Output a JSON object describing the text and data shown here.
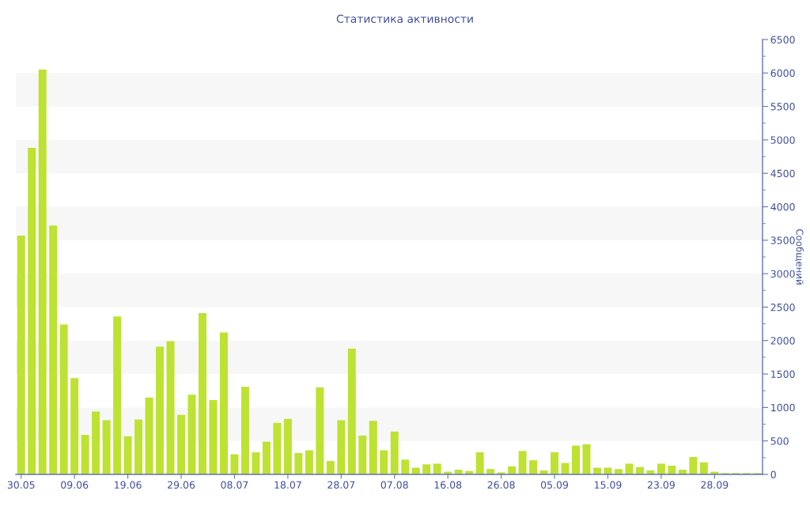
{
  "chart_data": {
    "type": "bar",
    "title": "Статистика активности",
    "ylabel": "Сообщений",
    "categories": [
      "30.05",
      null,
      null,
      null,
      null,
      "09.06",
      null,
      null,
      null,
      null,
      "19.06",
      null,
      null,
      null,
      null,
      "29.06",
      null,
      null,
      null,
      null,
      "08.07",
      null,
      null,
      null,
      null,
      "18.07",
      null,
      null,
      null,
      null,
      "28.07",
      null,
      null,
      null,
      null,
      "07.08",
      null,
      null,
      null,
      null,
      "16.08",
      null,
      null,
      null,
      null,
      "26.08",
      null,
      null,
      null,
      null,
      "05.09",
      null,
      null,
      null,
      null,
      "15.09",
      null,
      null,
      null,
      null,
      "23.09",
      null,
      null,
      null,
      null,
      "28.09",
      null,
      null,
      null,
      null
    ],
    "values": [
      3570,
      4880,
      6050,
      3720,
      2240,
      1440,
      590,
      940,
      810,
      2360,
      570,
      820,
      1150,
      1910,
      1990,
      890,
      1190,
      2410,
      1110,
      2120,
      300,
      1310,
      330,
      490,
      770,
      830,
      320,
      360,
      1300,
      200,
      810,
      1880,
      580,
      800,
      360,
      640,
      220,
      100,
      150,
      160,
      40,
      70,
      50,
      330,
      80,
      30,
      120,
      350,
      210,
      60,
      330,
      170,
      430,
      450,
      100,
      100,
      80,
      160,
      110,
      60,
      160,
      130,
      70,
      260,
      180,
      40,
      20,
      20,
      20,
      20
    ],
    "color": "#bde232",
    "ylim": [
      0,
      6500
    ],
    "yticks": [
      0,
      500,
      1000,
      1500,
      2000,
      2500,
      3000,
      3500,
      4000,
      4500,
      5000,
      5500,
      6000,
      6500
    ],
    "bands": [
      {
        "axis": "y",
        "from": 500,
        "to": 1000,
        "color": "#f7f7f7"
      },
      {
        "axis": "y",
        "from": 1500,
        "to": 2000,
        "color": "#f7f7f7"
      },
      {
        "axis": "y",
        "from": 2500,
        "to": 3000,
        "color": "#f7f7f7"
      },
      {
        "axis": "y",
        "from": 3500,
        "to": 4000,
        "color": "#f7f7f7"
      },
      {
        "axis": "y",
        "from": 4500,
        "to": 5000,
        "color": "#f7f7f7"
      },
      {
        "axis": "y",
        "from": 5500,
        "to": 6000,
        "color": "#f7f7f7"
      }
    ]
  }
}
